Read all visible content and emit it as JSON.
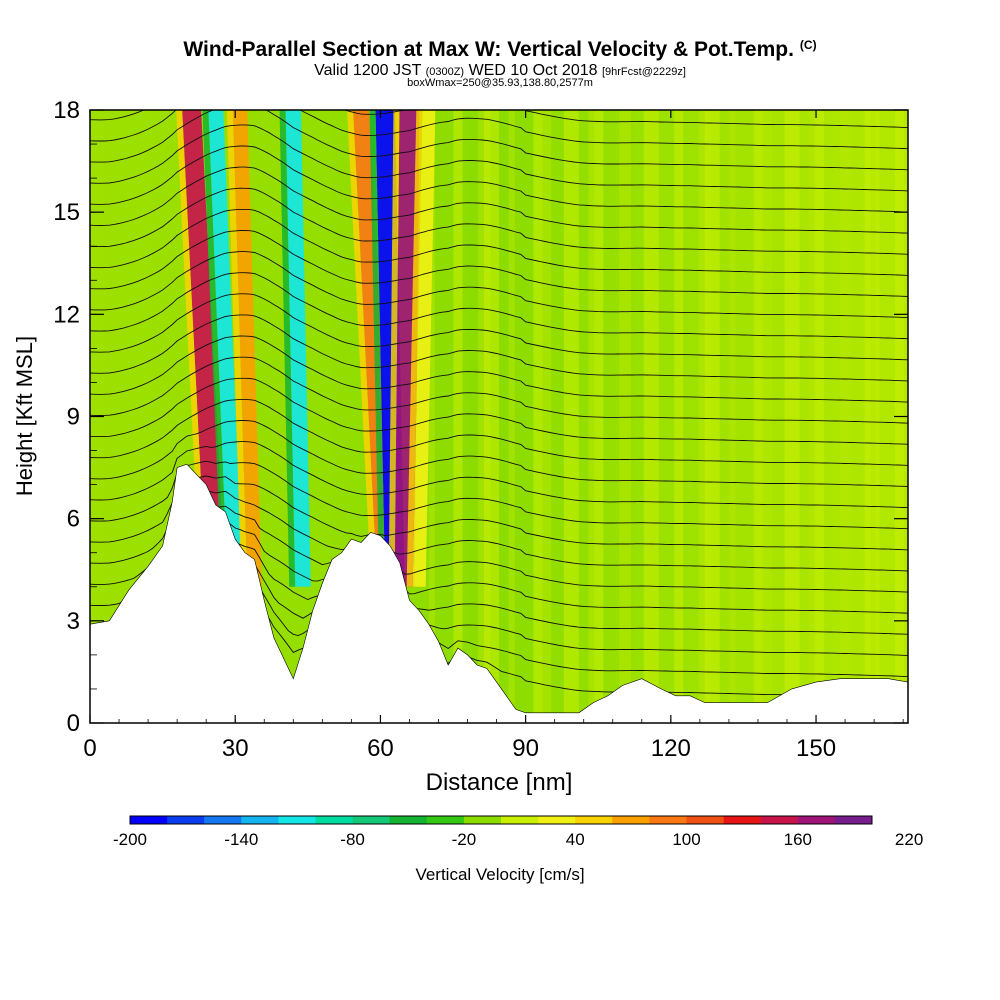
{
  "header": {
    "title": "Wind-Parallel Section at Max W: Vertical Velocity & Pot.Temp.",
    "copyright": "(C)",
    "valid_prefix": "Valid 1200 JST",
    "valid_zulu": "(0300Z)",
    "valid_date": "WED 10 Oct 2018",
    "forecast": "[9hrFcst@2229z]",
    "box_info": "boxWmax=250@35.93,138.80,2577m"
  },
  "chart_data": {
    "type": "heatmap",
    "xlabel": "Distance [nm]",
    "ylabel": "Height [Kft MSL]",
    "xlim": [
      0,
      169
    ],
    "ylim": [
      0,
      18
    ],
    "x_ticks": [
      0,
      30,
      60,
      90,
      120,
      150
    ],
    "y_ticks": [
      0,
      3,
      6,
      9,
      12,
      15,
      18
    ],
    "colorbar": {
      "label": "Vertical Velocity [cm/s]",
      "tick_labels": [
        "-200",
        "-140",
        "-80",
        "-20",
        "40",
        "100",
        "160",
        "220"
      ],
      "colors": [
        "#0000ff",
        "#0a3cf0",
        "#1478f0",
        "#14b4f0",
        "#14e6e6",
        "#00dca0",
        "#14c878",
        "#14b432",
        "#32c814",
        "#8cdc00",
        "#c8f000",
        "#f0f014",
        "#fad200",
        "#faa000",
        "#fa7814",
        "#f05014",
        "#e61414",
        "#c8144b",
        "#a01478",
        "#781e8c"
      ]
    },
    "terrain_profile_kft": [
      [
        0,
        2.9
      ],
      [
        4,
        3
      ],
      [
        8,
        3.9
      ],
      [
        12,
        4.6
      ],
      [
        15,
        5.2
      ],
      [
        17,
        6.5
      ],
      [
        18,
        7.5
      ],
      [
        20,
        7.6
      ],
      [
        22,
        7.3
      ],
      [
        24,
        7
      ],
      [
        26,
        6.4
      ],
      [
        28,
        6.2
      ],
      [
        30,
        5.4
      ],
      [
        32,
        5.0
      ],
      [
        34,
        4.8
      ],
      [
        36,
        3.6
      ],
      [
        38,
        2.5
      ],
      [
        40,
        1.9
      ],
      [
        42,
        1.3
      ],
      [
        44,
        2.2
      ],
      [
        46,
        3.3
      ],
      [
        48,
        4.1
      ],
      [
        50,
        4.8
      ],
      [
        52,
        5.0
      ],
      [
        54,
        5.4
      ],
      [
        56,
        5.3
      ],
      [
        58,
        5.6
      ],
      [
        60,
        5.5
      ],
      [
        62,
        5.2
      ],
      [
        64,
        4.7
      ],
      [
        66,
        3.6
      ],
      [
        68,
        3.3
      ],
      [
        70,
        2.9
      ],
      [
        72,
        2.4
      ],
      [
        74,
        1.7
      ],
      [
        76,
        2.2
      ],
      [
        78,
        2.0
      ],
      [
        80,
        1.7
      ],
      [
        82,
        1.6
      ],
      [
        84,
        1.2
      ],
      [
        86,
        0.8
      ],
      [
        88,
        0.4
      ],
      [
        90,
        0.3
      ],
      [
        95,
        0.3
      ],
      [
        98,
        0.3
      ],
      [
        101,
        0.3
      ],
      [
        104,
        0.6
      ],
      [
        107,
        0.8
      ],
      [
        110,
        1.1
      ],
      [
        114,
        1.3
      ],
      [
        118,
        1.0
      ],
      [
        121,
        0.8
      ],
      [
        124,
        0.8
      ],
      [
        127,
        0.6
      ],
      [
        130,
        0.6
      ],
      [
        134,
        0.6
      ],
      [
        138,
        0.6
      ],
      [
        140,
        0.6
      ],
      [
        145,
        1.0
      ],
      [
        150,
        1.2
      ],
      [
        155,
        1.3
      ],
      [
        160,
        1.3
      ],
      [
        165,
        1.3
      ],
      [
        169,
        1.2
      ]
    ],
    "updraft_bands": [
      {
        "x_top": 21,
        "x_bottom": 26,
        "w": 180
      },
      {
        "x_top": 26,
        "x_bottom": 30,
        "w": -100
      },
      {
        "x_top": 31,
        "x_bottom": 34,
        "w": 90
      },
      {
        "x_top": 42,
        "x_bottom": 44,
        "w": -110
      },
      {
        "x_top": 56,
        "x_bottom": 61,
        "w": 120
      },
      {
        "x_top": 61,
        "x_bottom": 63,
        "w": -190
      },
      {
        "x_top": 66,
        "x_bottom": 65,
        "w": 200
      },
      {
        "x_top": 70,
        "x_bottom": 68,
        "w": 60
      }
    ],
    "isentrope_count": 30
  }
}
